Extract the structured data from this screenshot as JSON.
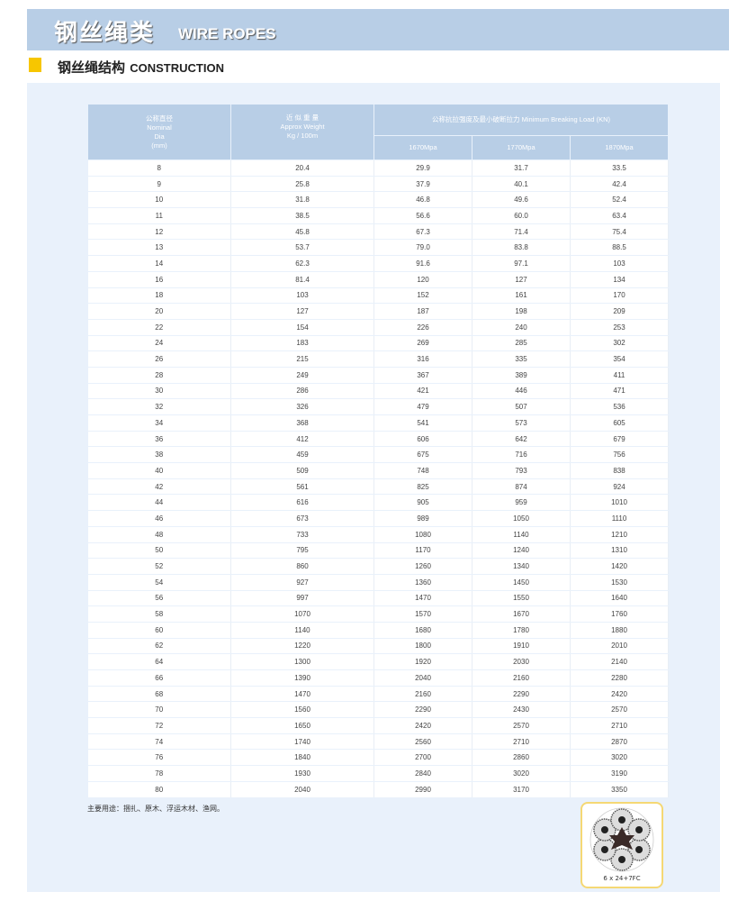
{
  "banner": {
    "title_cn": "钢丝绳类",
    "title_en": "WIRE ROPES"
  },
  "section": {
    "title_cn": "钢丝绳结构",
    "title_en": "CONSTRUCTION",
    "accent_color": "#f7c600"
  },
  "table": {
    "headers": {
      "nominal_dia": [
        "公称直径",
        "Nominal",
        "Dia",
        "(mm)"
      ],
      "approx_weight": [
        "近 似 重 量",
        "Approx Weight",
        "Kg / 100m"
      ],
      "breaking_load": "公称抗拉强度及最小破断拉力 Minimum Breaking Load (KN)",
      "grades": [
        "1670Mpa",
        "1770Mpa",
        "1870Mpa"
      ]
    },
    "rows": [
      [
        "8",
        "20.4",
        "29.9",
        "31.7",
        "33.5"
      ],
      [
        "9",
        "25.8",
        "37.9",
        "40.1",
        "42.4"
      ],
      [
        "10",
        "31.8",
        "46.8",
        "49.6",
        "52.4"
      ],
      [
        "11",
        "38.5",
        "56.6",
        "60.0",
        "63.4"
      ],
      [
        "12",
        "45.8",
        "67.3",
        "71.4",
        "75.4"
      ],
      [
        "13",
        "53.7",
        "79.0",
        "83.8",
        "88.5"
      ],
      [
        "14",
        "62.3",
        "91.6",
        "97.1",
        "103"
      ],
      [
        "16",
        "81.4",
        "120",
        "127",
        "134"
      ],
      [
        "18",
        "103",
        "152",
        "161",
        "170"
      ],
      [
        "20",
        "127",
        "187",
        "198",
        "209"
      ],
      [
        "22",
        "154",
        "226",
        "240",
        "253"
      ],
      [
        "24",
        "183",
        "269",
        "285",
        "302"
      ],
      [
        "26",
        "215",
        "316",
        "335",
        "354"
      ],
      [
        "28",
        "249",
        "367",
        "389",
        "411"
      ],
      [
        "30",
        "286",
        "421",
        "446",
        "471"
      ],
      [
        "32",
        "326",
        "479",
        "507",
        "536"
      ],
      [
        "34",
        "368",
        "541",
        "573",
        "605"
      ],
      [
        "36",
        "412",
        "606",
        "642",
        "679"
      ],
      [
        "38",
        "459",
        "675",
        "716",
        "756"
      ],
      [
        "40",
        "509",
        "748",
        "793",
        "838"
      ],
      [
        "42",
        "561",
        "825",
        "874",
        "924"
      ],
      [
        "44",
        "616",
        "905",
        "959",
        "1010"
      ],
      [
        "46",
        "673",
        "989",
        "1050",
        "1110"
      ],
      [
        "48",
        "733",
        "1080",
        "1140",
        "1210"
      ],
      [
        "50",
        "795",
        "1170",
        "1240",
        "1310"
      ],
      [
        "52",
        "860",
        "1260",
        "1340",
        "1420"
      ],
      [
        "54",
        "927",
        "1360",
        "1450",
        "1530"
      ],
      [
        "56",
        "997",
        "1470",
        "1550",
        "1640"
      ],
      [
        "58",
        "1070",
        "1570",
        "1670",
        "1760"
      ],
      [
        "60",
        "1140",
        "1680",
        "1780",
        "1880"
      ],
      [
        "62",
        "1220",
        "1800",
        "1910",
        "2010"
      ],
      [
        "64",
        "1300",
        "1920",
        "2030",
        "2140"
      ],
      [
        "66",
        "1390",
        "2040",
        "2160",
        "2280"
      ],
      [
        "68",
        "1470",
        "2160",
        "2290",
        "2420"
      ],
      [
        "70",
        "1560",
        "2290",
        "2430",
        "2570"
      ],
      [
        "72",
        "1650",
        "2420",
        "2570",
        "2710"
      ],
      [
        "74",
        "1740",
        "2560",
        "2710",
        "2870"
      ],
      [
        "76",
        "1840",
        "2700",
        "2860",
        "3020"
      ],
      [
        "78",
        "1930",
        "2840",
        "3020",
        "3190"
      ],
      [
        "80",
        "2040",
        "2990",
        "3170",
        "3350"
      ]
    ]
  },
  "note": "主要用途：捆扎、原木、浮运木材、渔网。",
  "rope_image": {
    "label": "6 x 24+7FC",
    "icon": "wire-rope-cross-section-icon"
  }
}
